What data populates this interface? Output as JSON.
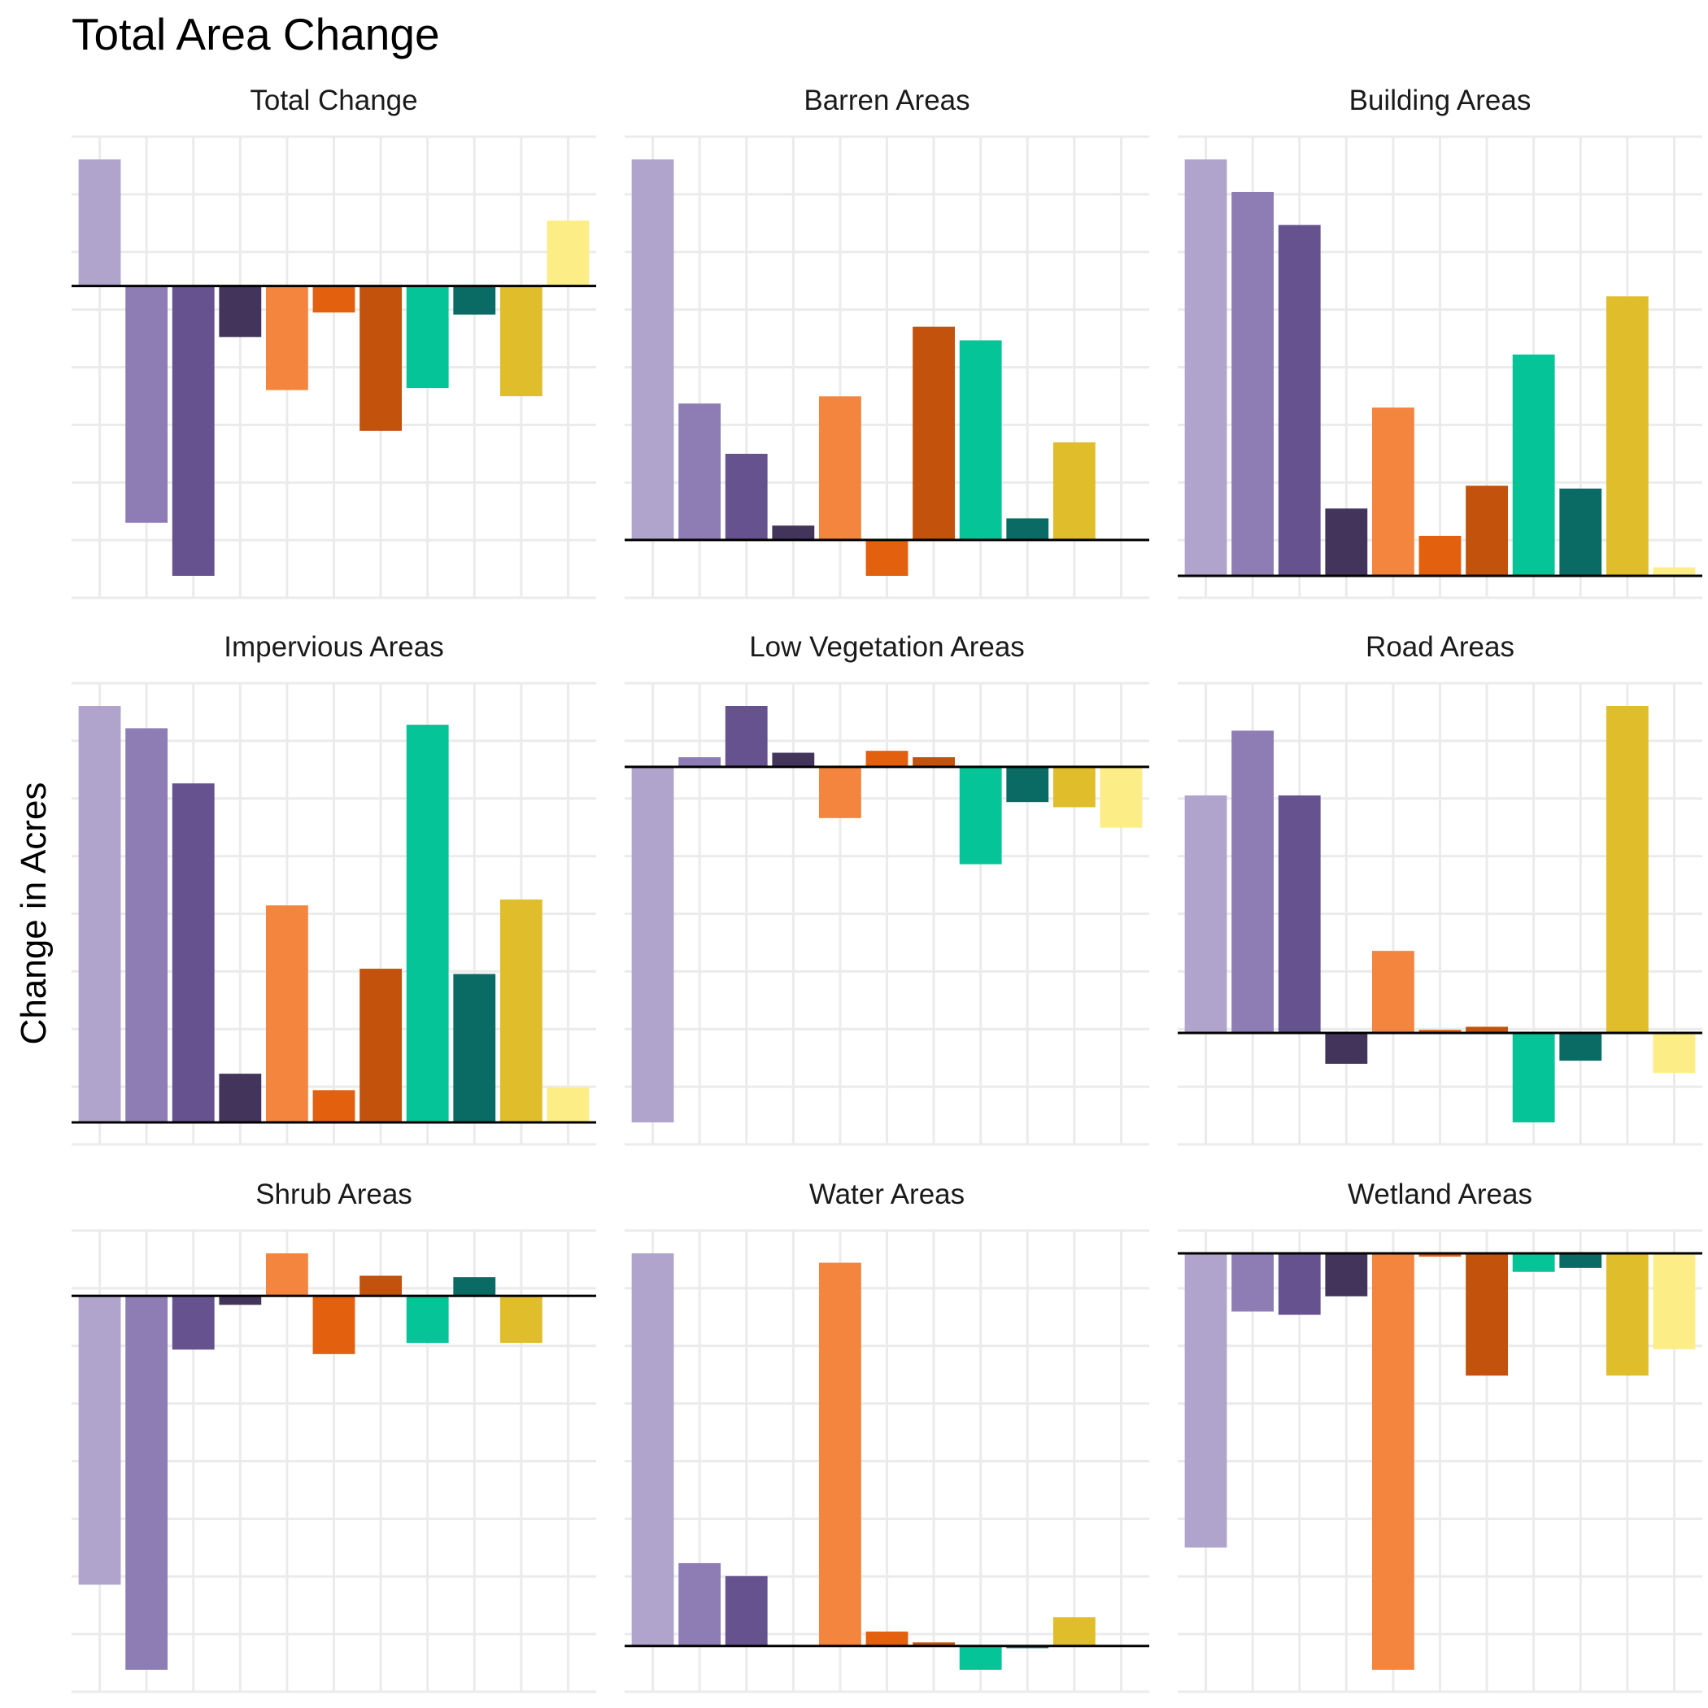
{
  "chart_data": {
    "type": "bar",
    "title": "Total Area Change",
    "ylabel": "Change in Acres",
    "xlabel": "",
    "facet_scales": "free",
    "grid": true,
    "legend": "none",
    "series_colors": [
      "#b0a4cc",
      "#8e7cb5",
      "#66528f",
      "#43345c",
      "#f4853e",
      "#e3600e",
      "#c2520c",
      "#05c497",
      "#0a6b65",
      "#e0bd2a",
      "#fded86"
    ],
    "panels": [
      {
        "title": "Total Change",
        "values": [
          3.1,
          -5.8,
          -7.1,
          -1.25,
          -2.55,
          -0.65,
          -3.55,
          -2.5,
          -0.7,
          -2.7,
          1.6
        ]
      },
      {
        "title": "Barren Areas",
        "values": [
          5.3,
          1.9,
          1.2,
          0.2,
          2.0,
          -0.5,
          2.97,
          2.78,
          0.3,
          1.36,
          0.0
        ]
      },
      {
        "title": "Building Areas",
        "values": [
          7.3,
          6.73,
          6.15,
          1.18,
          2.95,
          0.7,
          1.58,
          3.88,
          1.53,
          4.9,
          0.15
        ]
      },
      {
        "title": "Impervious Areas",
        "values": [
          7.1,
          6.72,
          5.78,
          0.83,
          3.7,
          0.55,
          2.62,
          6.78,
          2.53,
          3.8,
          0.6
        ]
      },
      {
        "title": "Low Vegetation Areas",
        "values": [
          -5.55,
          0.15,
          0.95,
          0.22,
          -0.8,
          0.25,
          0.15,
          -1.52,
          -0.55,
          -0.63,
          -0.95
        ]
      },
      {
        "title": "Road Areas",
        "values": [
          3.85,
          4.9,
          3.85,
          -0.5,
          1.33,
          0.05,
          0.1,
          -1.45,
          -0.45,
          5.3,
          -0.65
        ]
      },
      {
        "title": "Shrub Areas",
        "values": [
          -6.45,
          -8.35,
          -1.2,
          -0.2,
          0.95,
          -1.3,
          0.45,
          -1.05,
          0.42,
          -1.05,
          0.0
        ]
      },
      {
        "title": "Water Areas",
        "values": [
          5.45,
          1.15,
          0.97,
          0.0,
          5.32,
          0.2,
          0.05,
          -0.33,
          -0.03,
          0.4,
          0.0
        ]
      },
      {
        "title": "Wetland Areas",
        "values": [
          -4.45,
          -0.88,
          -0.93,
          -0.65,
          -6.3,
          -0.05,
          -1.85,
          -0.28,
          -0.22,
          -1.85,
          -1.45
        ]
      }
    ]
  }
}
